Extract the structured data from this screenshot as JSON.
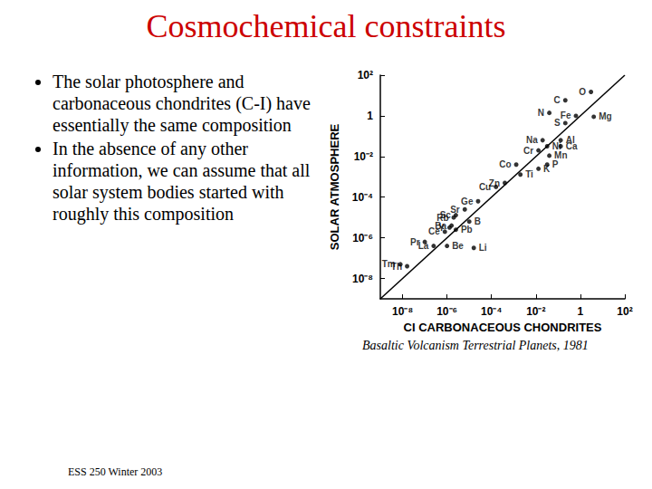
{
  "slide": {
    "title": "Cosmochemical constraints",
    "bullets": [
      "The solar photosphere and carbonaceous chondrites (C-I) have essentially the same composition",
      "In the absence of any other information, we can assume that all solar system bodies started with roughly this composition"
    ],
    "caption": "Basaltic Volcanism Terrestrial Planets, 1981",
    "footer": "ESS 250 Winter 2003"
  },
  "chart_data": {
    "type": "scatter",
    "x_label": "CI CARBONACEOUS CHONDRITES",
    "y_label": "SOLAR ATMOSPHERE",
    "log": true,
    "grid": false,
    "xlim": [
      1e-09,
      100
    ],
    "ylim": [
      1e-09,
      100
    ],
    "xticks": [
      {
        "value": 1e-08,
        "label": "10⁻⁸"
      },
      {
        "value": 1e-06,
        "label": "10⁻⁶"
      },
      {
        "value": 0.0001,
        "label": "10⁻⁴"
      },
      {
        "value": 0.01,
        "label": "10⁻²"
      },
      1,
      {
        "value": 100,
        "label": "10²"
      }
    ],
    "yticks": [
      {
        "value": 1e-08,
        "label": "10⁻⁸"
      },
      {
        "value": 1e-06,
        "label": "10⁻⁶"
      },
      {
        "value": 0.0001,
        "label": "10⁻⁴"
      },
      {
        "value": 0.01,
        "label": "10⁻²"
      },
      1,
      {
        "value": 100,
        "label": "10²"
      }
    ],
    "series": [
      {
        "type": "scatter",
        "color": "#000000",
        "marker": "circle",
        "labels": [
          "C",
          "O",
          "N",
          "Fe",
          "Mg",
          "S",
          "Na",
          "Ni",
          "Al",
          "Ca",
          "Cr",
          "Mn",
          "Co",
          "P",
          "K",
          "Ti",
          "Zn",
          "Cu",
          "Ge",
          "Sr",
          "Sc",
          "Rb",
          "Y",
          "Ba",
          "B",
          "Pb",
          "Ce",
          "La",
          "Be",
          "Li",
          "Pr",
          "Tm",
          "Th"
        ],
        "x": [
          0.21,
          3.0,
          0.04,
          0.63,
          4.0,
          0.21,
          0.02,
          0.032,
          0.13,
          0.13,
          0.013,
          0.04,
          0.0013,
          0.032,
          0.013,
          0.002,
          0.0004,
          0.00016,
          2.5e-05,
          6.3e-06,
          2.5e-06,
          2e-06,
          1.3e-06,
          1.6e-06,
          1e-05,
          2.5e-06,
          8e-07,
          2.5e-07,
          1e-06,
          1.6e-05,
          1e-07,
          8e-09,
          1.6e-08
        ],
        "y": [
          5.8,
          15,
          1.4,
          1.0,
          0.9,
          0.44,
          0.063,
          0.032,
          0.063,
          0.032,
          0.02,
          0.011,
          0.004,
          0.004,
          0.0025,
          0.0013,
          0.0005,
          0.00032,
          6.3e-05,
          2.5e-05,
          1.3e-05,
          1e-05,
          3.2e-06,
          4e-06,
          6.3e-06,
          2.5e-06,
          2e-06,
          4e-07,
          4e-07,
          3.2e-07,
          6.3e-07,
          5e-08,
          4e-08
        ]
      },
      {
        "type": "line",
        "color": "#000000",
        "line_style": "solid",
        "x": [
          1e-09,
          100
        ],
        "y": [
          1e-09,
          100
        ]
      }
    ]
  }
}
